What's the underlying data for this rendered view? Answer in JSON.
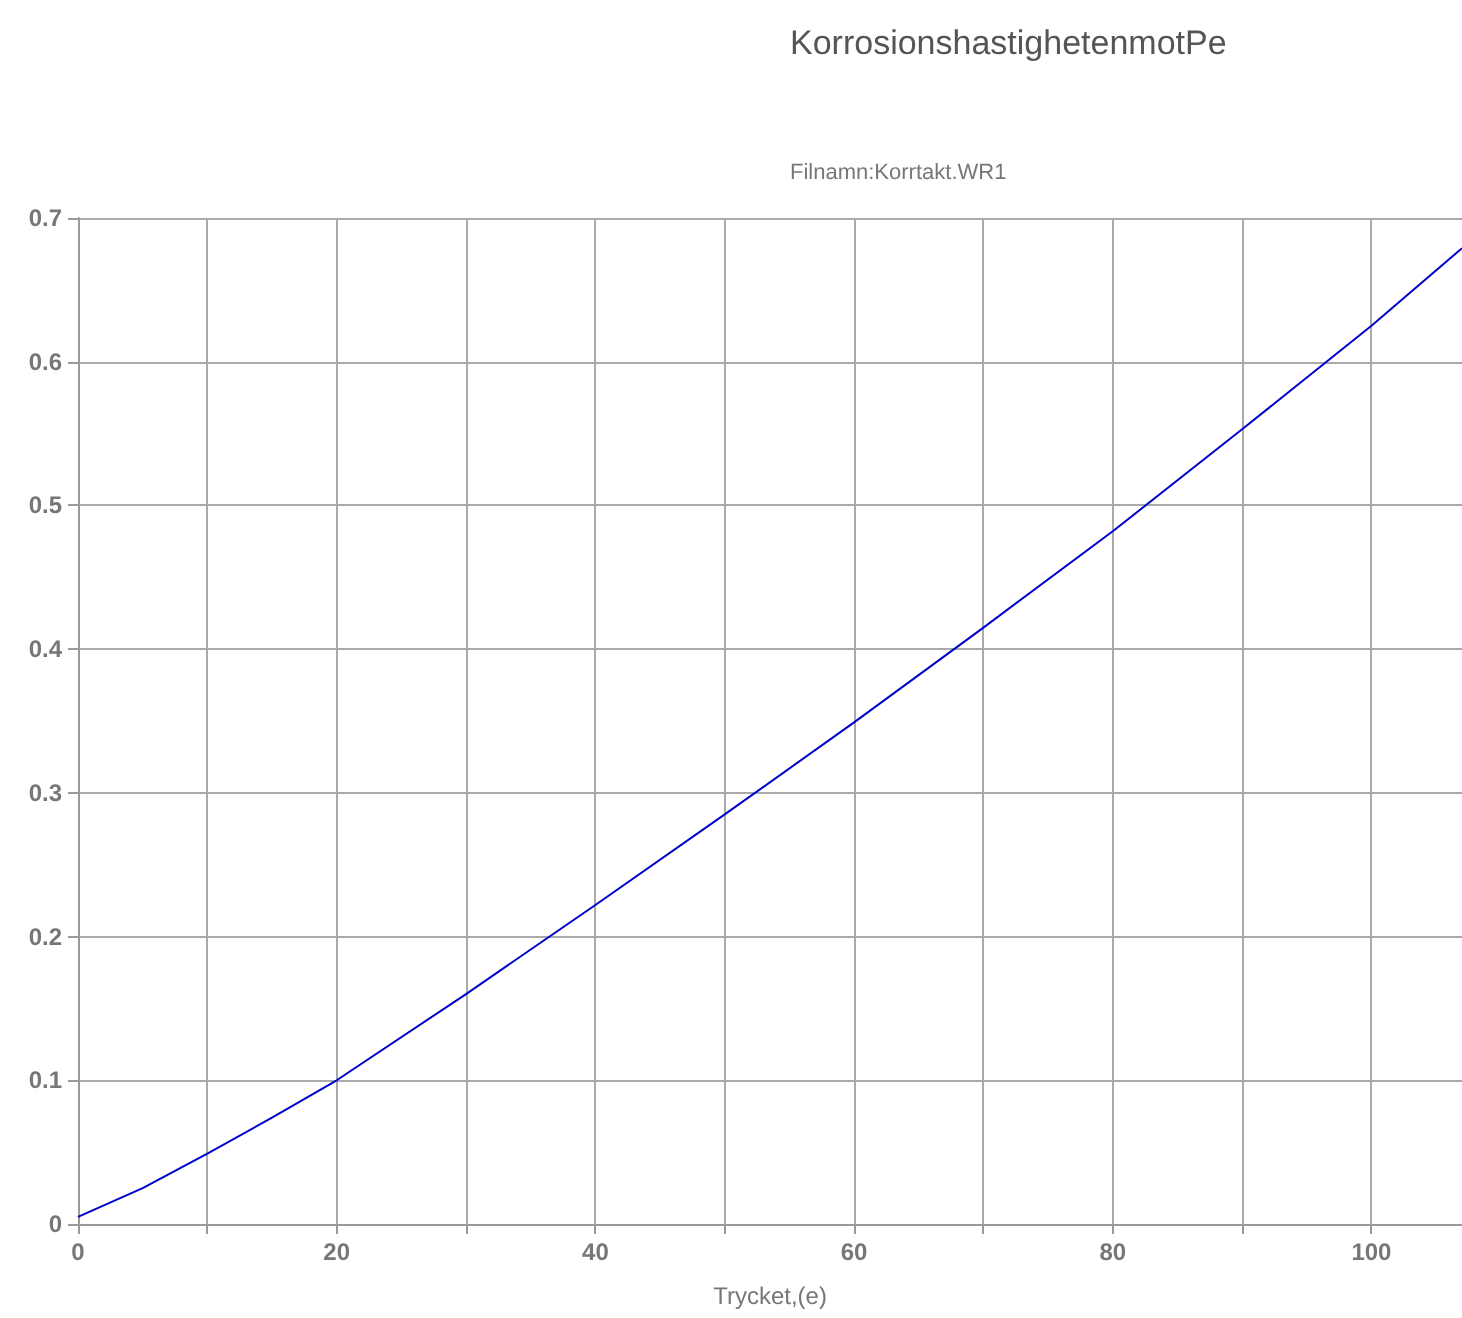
{
  "chart_data": {
    "type": "line",
    "title": "KorrosionshastighetenmotPe",
    "subtitle": "Filnamn:Korrtakt.WR1",
    "xlabel": "Trycket,(e)",
    "x": [
      0,
      5,
      10,
      15,
      20,
      30,
      40,
      50,
      60,
      70,
      80,
      90,
      100,
      107
    ],
    "series": [
      {
        "color": "#0000cc",
        "values": [
          0.005,
          0.025,
          0.049,
          0.074,
          0.1,
          0.16,
          0.222,
          0.285,
          0.349,
          0.415,
          0.482,
          0.553,
          0.625,
          0.679
        ]
      }
    ],
    "xlim": [
      0,
      107
    ],
    "xticks": [
      0,
      {
        "value": 10,
        "label": null
      },
      20,
      {
        "value": 30,
        "label": null
      },
      40,
      {
        "value": 50,
        "label": null
      },
      60,
      {
        "value": 70,
        "label": null
      },
      80,
      {
        "value": 90,
        "label": null
      },
      100
    ],
    "ylim": [
      0,
      0.7
    ],
    "yticks": [
      0,
      0.1,
      0.2,
      0.3,
      0.4,
      0.5,
      0.6,
      0.7
    ],
    "grid": true,
    "marker": "none",
    "line_style": "solid"
  }
}
